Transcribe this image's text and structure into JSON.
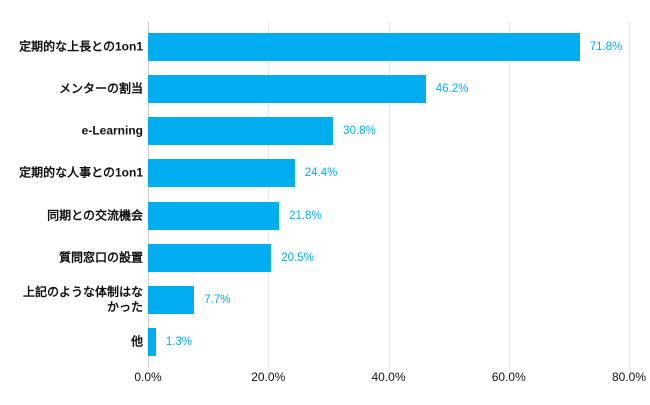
{
  "chart_data": {
    "type": "bar",
    "orientation": "horizontal",
    "title": "",
    "xlabel": "",
    "ylabel": "",
    "categories": [
      "定期的な上長との1on1",
      "メンターの割当",
      "e-Learning",
      "定期的な人事との1on1",
      "同期との交流機会",
      "質問窓口の設置",
      "上記のような体制はなかった",
      "他"
    ],
    "values": [
      71.8,
      46.2,
      30.8,
      24.4,
      21.8,
      20.5,
      7.7,
      1.3
    ],
    "value_labels": [
      "71.8%",
      "46.2%",
      "30.8%",
      "24.4%",
      "21.8%",
      "20.5%",
      "7.7%",
      "1.3%"
    ],
    "xlim": [
      0,
      80
    ],
    "x_tick_values": [
      0,
      20,
      40,
      60,
      80
    ],
    "x_tick_labels": [
      "0.0%",
      "20.0%",
      "40.0%",
      "60.0%",
      "80.0%"
    ],
    "grid": "vertical",
    "legend": "none",
    "colors": {
      "bar": "#00AEF0",
      "value_label": "#00AEF0",
      "axis_line": "#c9c9c9",
      "gridline": "#e8e8e8",
      "text": "#111111",
      "background": "#ffffff"
    }
  }
}
